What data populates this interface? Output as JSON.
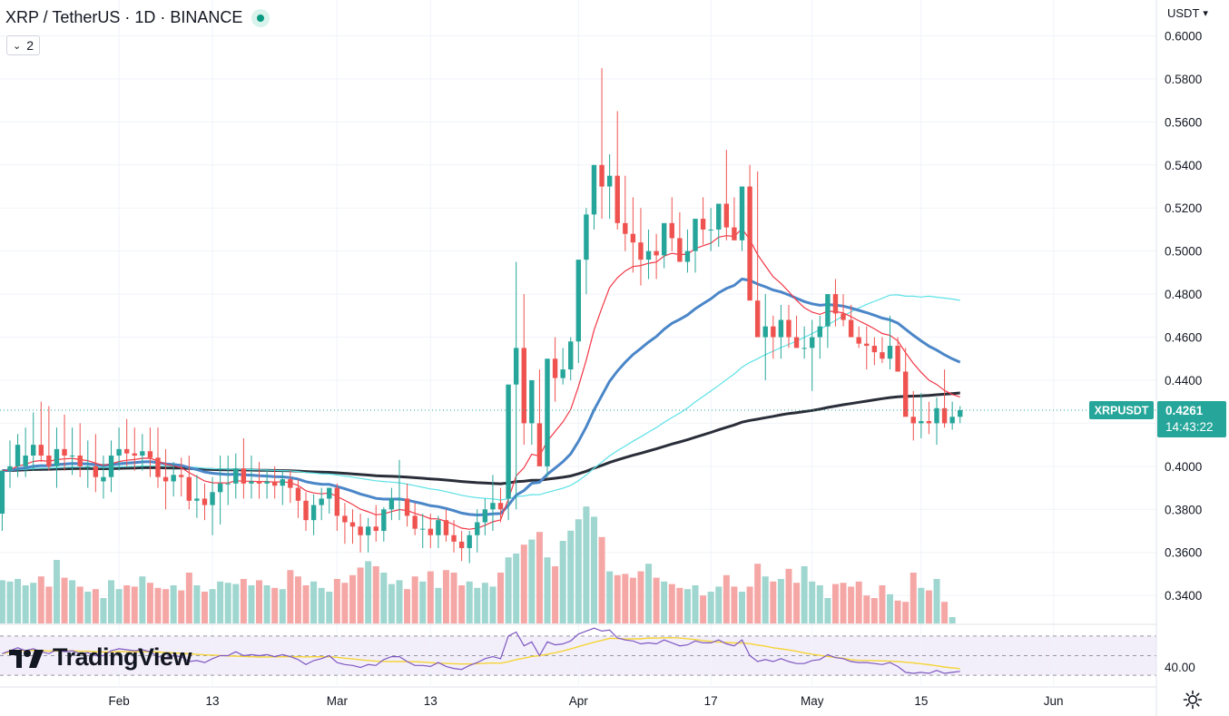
{
  "header": {
    "title": "XRP / TetherUS · 1D · BINANCE",
    "collapse_count": "2"
  },
  "currency": {
    "label": "USDT"
  },
  "logo": {
    "text": "TradingView"
  },
  "icons": {
    "status": "live-dot-icon",
    "collapse": "chevron-down-icon",
    "currency": "chevron-down-icon",
    "settings": "gear-icon"
  },
  "colors": {
    "up": "#26a69a",
    "down": "#ef5350",
    "ma_black": "#2a2e39",
    "ma_blue": "#4a86c8",
    "ma_red": "#f23645",
    "ma_cyan": "#5ce1e6",
    "rsi_line": "#7e57c2",
    "rsi_ma": "#f5d437",
    "tag": "#26a69a"
  },
  "chart_data": {
    "type": "candlestick",
    "symbol_tag": "XRPUSDT",
    "last_price": "0.4261",
    "countdown": "14:43:22",
    "y_ticks": [
      "0.6000",
      "0.5800",
      "0.5600",
      "0.5400",
      "0.5200",
      "0.5000",
      "0.4800",
      "0.4600",
      "0.4400",
      "0.4200",
      "0.4000",
      "0.3800",
      "0.3600",
      "0.3400"
    ],
    "y_tick_values": [
      0.6,
      0.58,
      0.56,
      0.54,
      0.52,
      0.5,
      0.48,
      0.46,
      0.44,
      0.42,
      0.4,
      0.38,
      0.36,
      0.34
    ],
    "ylim": [
      0.327,
      0.604
    ],
    "x_ticks": [
      {
        "label": "Feb",
        "index": 15
      },
      {
        "label": "13",
        "index": 27
      },
      {
        "label": "Mar",
        "index": 43
      },
      {
        "label": "13",
        "index": 55
      },
      {
        "label": "Apr",
        "index": 74
      },
      {
        "label": "17",
        "index": 91
      },
      {
        "label": "May",
        "index": 104
      },
      {
        "label": "15",
        "index": 118
      },
      {
        "label": "Jun",
        "index": 135
      }
    ],
    "rsi_label": "40.00",
    "rsi_range": [
      20,
      80
    ],
    "rsi_bands": [
      70,
      50,
      30
    ],
    "opens": [
      0.378,
      0.398,
      0.4,
      0.4,
      0.405,
      0.41,
      0.405,
      0.4,
      0.408,
      0.405,
      0.405,
      0.4,
      0.4,
      0.393,
      0.395,
      0.405,
      0.408,
      0.406,
      0.405,
      0.407,
      0.404,
      0.395,
      0.393,
      0.396,
      0.395,
      0.384,
      0.385,
      0.382,
      0.388,
      0.392,
      0.392,
      0.399,
      0.392,
      0.393,
      0.392,
      0.393,
      0.391,
      0.394,
      0.39,
      0.384,
      0.375,
      0.382,
      0.385,
      0.39,
      0.377,
      0.374,
      0.372,
      0.368,
      0.372,
      0.37,
      0.38,
      0.385,
      0.385,
      0.377,
      0.371,
      0.371,
      0.368,
      0.375,
      0.368,
      0.365,
      0.362,
      0.368,
      0.374,
      0.38,
      0.383,
      0.385,
      0.438,
      0.455,
      0.42,
      0.42,
      0.4,
      0.45,
      0.441,
      0.445,
      0.458,
      0.496,
      0.517,
      0.54,
      0.53,
      0.535,
      0.513,
      0.508,
      0.504,
      0.496,
      0.5,
      0.498,
      0.513,
      0.506,
      0.495,
      0.5,
      0.515,
      0.51,
      0.51,
      0.522,
      0.511,
      0.505,
      0.53,
      0.477,
      0.46,
      0.465,
      0.46,
      0.468,
      0.46,
      0.455,
      0.455,
      0.46,
      0.465,
      0.48,
      0.471,
      0.468,
      0.46,
      0.457,
      0.456,
      0.453,
      0.45,
      0.456,
      0.444,
      0.423,
      0.42,
      0.421,
      0.42,
      0.427,
      0.42,
      0.423
    ],
    "highs": [
      0.388,
      0.412,
      0.415,
      0.418,
      0.425,
      0.43,
      0.428,
      0.418,
      0.424,
      0.418,
      0.42,
      0.412,
      0.415,
      0.405,
      0.412,
      0.418,
      0.422,
      0.418,
      0.415,
      0.418,
      0.418,
      0.408,
      0.402,
      0.404,
      0.405,
      0.396,
      0.392,
      0.395,
      0.405,
      0.405,
      0.406,
      0.413,
      0.405,
      0.402,
      0.398,
      0.4,
      0.398,
      0.398,
      0.394,
      0.388,
      0.387,
      0.39,
      0.39,
      0.392,
      0.383,
      0.38,
      0.378,
      0.376,
      0.382,
      0.381,
      0.39,
      0.403,
      0.392,
      0.383,
      0.378,
      0.378,
      0.377,
      0.38,
      0.375,
      0.37,
      0.37,
      0.38,
      0.385,
      0.396,
      0.39,
      0.4,
      0.495,
      0.48,
      0.44,
      0.445,
      0.425,
      0.46,
      0.455,
      0.46,
      0.48,
      0.52,
      0.54,
      0.585,
      0.545,
      0.565,
      0.535,
      0.525,
      0.52,
      0.51,
      0.508,
      0.51,
      0.525,
      0.518,
      0.51,
      0.508,
      0.525,
      0.52,
      0.52,
      0.547,
      0.525,
      0.52,
      0.54,
      0.537,
      0.48,
      0.47,
      0.475,
      0.475,
      0.47,
      0.465,
      0.468,
      0.47,
      0.48,
      0.487,
      0.48,
      0.475,
      0.465,
      0.465,
      0.46,
      0.46,
      0.47,
      0.46,
      0.455,
      0.435,
      0.434,
      0.43,
      0.432,
      0.445,
      0.43,
      0.428
    ],
    "lows": [
      0.37,
      0.39,
      0.395,
      0.395,
      0.398,
      0.402,
      0.398,
      0.39,
      0.398,
      0.396,
      0.395,
      0.39,
      0.388,
      0.385,
      0.388,
      0.398,
      0.4,
      0.398,
      0.398,
      0.395,
      0.39,
      0.38,
      0.386,
      0.386,
      0.38,
      0.376,
      0.375,
      0.368,
      0.373,
      0.382,
      0.385,
      0.385,
      0.385,
      0.385,
      0.385,
      0.385,
      0.382,
      0.383,
      0.376,
      0.37,
      0.368,
      0.375,
      0.378,
      0.37,
      0.364,
      0.364,
      0.36,
      0.36,
      0.365,
      0.365,
      0.375,
      0.375,
      0.372,
      0.368,
      0.362,
      0.362,
      0.362,
      0.365,
      0.36,
      0.356,
      0.355,
      0.36,
      0.368,
      0.37,
      0.374,
      0.375,
      0.38,
      0.41,
      0.41,
      0.412,
      0.395,
      0.43,
      0.438,
      0.44,
      0.448,
      0.48,
      0.51,
      0.515,
      0.515,
      0.51,
      0.5,
      0.49,
      0.484,
      0.487,
      0.487,
      0.492,
      0.5,
      0.498,
      0.49,
      0.49,
      0.503,
      0.5,
      0.502,
      0.505,
      0.505,
      0.5,
      0.48,
      0.47,
      0.44,
      0.45,
      0.45,
      0.455,
      0.455,
      0.45,
      0.435,
      0.45,
      0.455,
      0.465,
      0.465,
      0.46,
      0.455,
      0.445,
      0.447,
      0.448,
      0.445,
      0.445,
      0.43,
      0.412,
      0.413,
      0.415,
      0.41,
      0.418,
      0.417,
      0.42
    ],
    "closes": [
      0.398,
      0.4,
      0.41,
      0.405,
      0.41,
      0.405,
      0.4,
      0.408,
      0.405,
      0.405,
      0.4,
      0.4,
      0.395,
      0.395,
      0.405,
      0.408,
      0.406,
      0.405,
      0.407,
      0.404,
      0.395,
      0.393,
      0.396,
      0.395,
      0.384,
      0.385,
      0.382,
      0.388,
      0.392,
      0.392,
      0.399,
      0.392,
      0.393,
      0.392,
      0.393,
      0.391,
      0.394,
      0.39,
      0.384,
      0.375,
      0.382,
      0.385,
      0.39,
      0.377,
      0.374,
      0.372,
      0.368,
      0.372,
      0.37,
      0.38,
      0.385,
      0.385,
      0.377,
      0.371,
      0.371,
      0.368,
      0.375,
      0.368,
      0.365,
      0.362,
      0.368,
      0.374,
      0.38,
      0.383,
      0.38,
      0.438,
      0.455,
      0.42,
      0.44,
      0.4,
      0.45,
      0.441,
      0.445,
      0.458,
      0.496,
      0.517,
      0.54,
      0.53,
      0.535,
      0.513,
      0.508,
      0.504,
      0.496,
      0.5,
      0.498,
      0.513,
      0.506,
      0.495,
      0.5,
      0.515,
      0.51,
      0.51,
      0.522,
      0.511,
      0.505,
      0.53,
      0.477,
      0.46,
      0.465,
      0.46,
      0.468,
      0.46,
      0.455,
      0.455,
      0.46,
      0.465,
      0.48,
      0.471,
      0.468,
      0.46,
      0.457,
      0.456,
      0.453,
      0.45,
      0.456,
      0.444,
      0.423,
      0.42,
      0.421,
      0.42,
      0.427,
      0.42,
      0.423,
      0.4261
    ],
    "volumes": [
      0.34,
      0.33,
      0.35,
      0.3,
      0.32,
      0.37,
      0.29,
      0.5,
      0.36,
      0.34,
      0.29,
      0.25,
      0.27,
      0.2,
      0.34,
      0.27,
      0.3,
      0.29,
      0.37,
      0.32,
      0.28,
      0.27,
      0.3,
      0.26,
      0.4,
      0.3,
      0.25,
      0.27,
      0.33,
      0.32,
      0.31,
      0.35,
      0.3,
      0.34,
      0.3,
      0.28,
      0.27,
      0.42,
      0.37,
      0.3,
      0.33,
      0.28,
      0.25,
      0.35,
      0.32,
      0.38,
      0.44,
      0.49,
      0.45,
      0.4,
      0.31,
      0.34,
      0.27,
      0.37,
      0.33,
      0.41,
      0.28,
      0.42,
      0.4,
      0.3,
      0.33,
      0.28,
      0.32,
      0.29,
      0.4,
      0.52,
      0.55,
      0.62,
      0.66,
      0.72,
      0.52,
      0.45,
      0.65,
      0.73,
      0.82,
      0.92,
      0.84,
      0.68,
      0.41,
      0.38,
      0.39,
      0.36,
      0.41,
      0.47,
      0.36,
      0.33,
      0.31,
      0.28,
      0.27,
      0.3,
      0.22,
      0.25,
      0.29,
      0.38,
      0.29,
      0.25,
      0.29,
      0.47,
      0.37,
      0.33,
      0.35,
      0.43,
      0.32,
      0.45,
      0.33,
      0.3,
      0.2,
      0.31,
      0.32,
      0.29,
      0.33,
      0.22,
      0.2,
      0.3,
      0.23,
      0.18,
      0.17,
      0.4,
      0.28,
      0.26,
      0.35,
      0.17,
      0.05
    ],
    "rsi": [
      52,
      55,
      58,
      55,
      57,
      54,
      52,
      56,
      54,
      55,
      52,
      53,
      50,
      50,
      55,
      57,
      56,
      55,
      56,
      54,
      49,
      48,
      50,
      49,
      44,
      45,
      43,
      47,
      50,
      50,
      54,
      50,
      51,
      50,
      51,
      49,
      51,
      49,
      46,
      41,
      45,
      47,
      50,
      43,
      41,
      40,
      38,
      41,
      40,
      46,
      49,
      49,
      44,
      40,
      40,
      39,
      43,
      39,
      37,
      36,
      40,
      43,
      47,
      49,
      47,
      70,
      74,
      60,
      64,
      50,
      64,
      61,
      62,
      65,
      72,
      75,
      78,
      75,
      76,
      68,
      66,
      65,
      62,
      63,
      62,
      66,
      63,
      60,
      61,
      65,
      63,
      63,
      66,
      62,
      60,
      66,
      50,
      44,
      46,
      44,
      47,
      44,
      42,
      42,
      45,
      46,
      51,
      48,
      47,
      44,
      43,
      43,
      42,
      41,
      43,
      39,
      33,
      32,
      33,
      32,
      35,
      32,
      33,
      34
    ]
  }
}
